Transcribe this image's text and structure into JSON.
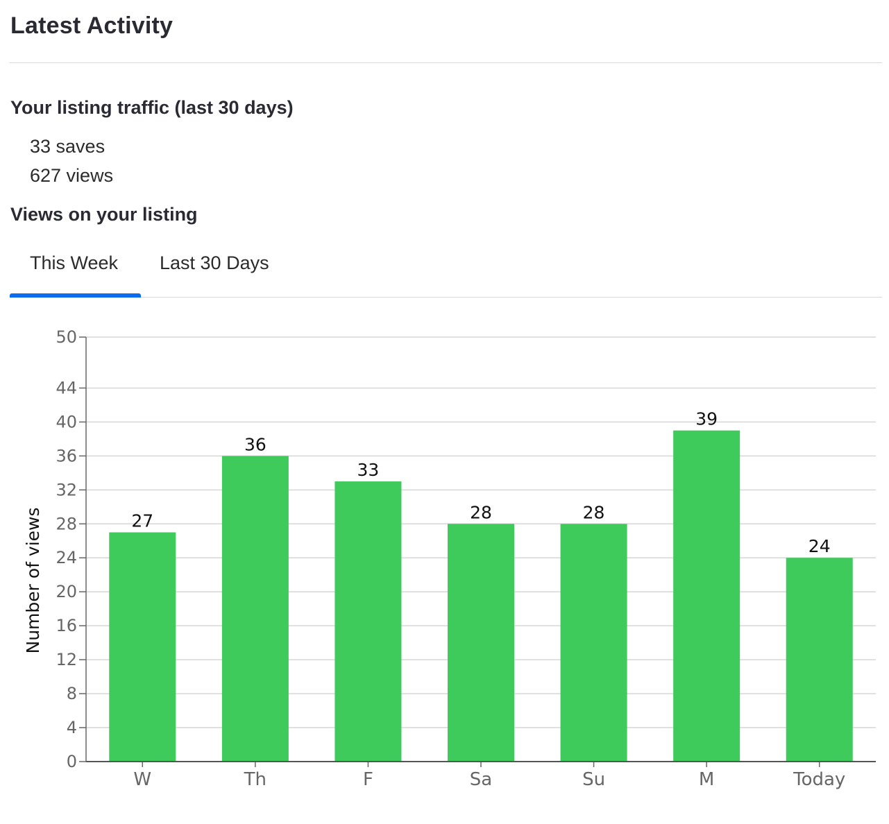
{
  "header": {
    "title": "Latest Activity"
  },
  "traffic": {
    "heading": "Your listing traffic (last 30 days)",
    "saves": "33 saves",
    "views": "627 views"
  },
  "views_section": {
    "heading": "Views on your listing"
  },
  "tabs": [
    {
      "label": "This Week",
      "active": true
    },
    {
      "label": "Last 30 Days",
      "active": false
    }
  ],
  "colors": {
    "bar": "#3fca5c",
    "tab_indicator": "#0b6cf0",
    "grid": "#d6d6d6"
  },
  "chart_data": {
    "type": "bar",
    "categories": [
      "W",
      "Th",
      "F",
      "Sa",
      "Su",
      "M",
      "Today"
    ],
    "values": [
      27,
      36,
      33,
      28,
      28,
      39,
      24
    ],
    "ylabel": "Number of views",
    "xlabel": "",
    "ylim": [
      0,
      50
    ],
    "yticks": [
      0,
      4,
      8,
      12,
      16,
      20,
      24,
      28,
      32,
      36,
      40,
      44,
      50
    ],
    "grid": true,
    "data_labels": true
  }
}
